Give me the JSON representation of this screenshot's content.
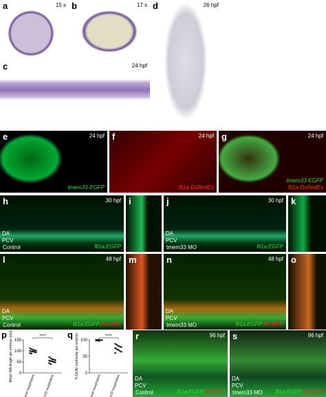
{
  "panels": {
    "a": {
      "label": "a",
      "time": "15 s"
    },
    "b": {
      "label": "b",
      "time": "17 s"
    },
    "c": {
      "label": "c",
      "time": "24 hpf"
    },
    "d": {
      "label": "d",
      "time": "26 hpf"
    },
    "e": {
      "label": "e",
      "time": "24 hpf",
      "reporter": [
        [
          {
            "text": "tmem33-EGFP",
            "color": "#3cdc3c"
          }
        ]
      ]
    },
    "f": {
      "label": "f",
      "time": "24 hpf",
      "reporter": [
        [
          {
            "text": "fli1a-DsRedEx",
            "color": "#ff3030"
          }
        ]
      ]
    },
    "g": {
      "label": "g",
      "time": "24 hpf",
      "reporter": [
        [
          {
            "text": "tmem33-EGFP",
            "color": "#3cdc3c"
          }
        ],
        [
          {
            "text": "fli1a-DsRedEx",
            "color": "#ff3030"
          }
        ]
      ]
    },
    "h": {
      "label": "h",
      "time": "30 hpf",
      "da": "DA",
      "pcv": "PCV",
      "condition": "Control",
      "reporter": [
        [
          {
            "text": "fli1a:EGFP",
            "color": "#3cdc3c"
          }
        ]
      ]
    },
    "i": {
      "label": "i"
    },
    "j": {
      "label": "j",
      "time": "30 hpf",
      "da": "DA",
      "pcv": "PCV",
      "condition": "tmem33 MO",
      "reporter": [
        [
          {
            "text": "fli1a:EGFP",
            "color": "#3cdc3c"
          }
        ]
      ]
    },
    "k": {
      "label": "k"
    },
    "l": {
      "label": "l",
      "time": "48 hpf",
      "da": "DA",
      "pcv": "PCV",
      "condition": "Control",
      "reporter": [
        [
          {
            "text": "fli1a:EGFP;",
            "color": "#3cdc3c"
          },
          {
            "text": "flt1:RFP",
            "color": "#ff3030"
          }
        ]
      ]
    },
    "m": {
      "label": "m"
    },
    "n": {
      "label": "n",
      "time": "48 hpf",
      "da": "DA",
      "pcv": "PCV",
      "condition": "tmem33 MO",
      "reporter": [
        [
          {
            "text": "fli1a:EGFP;",
            "color": "#3cdc3c"
          },
          {
            "text": "flt1:RFP",
            "color": "#ff3030"
          }
        ]
      ]
    },
    "o": {
      "label": "o"
    },
    "r": {
      "label": "r",
      "time": "96 hpf",
      "da": "DA",
      "pcv": "PCV",
      "condition": "Control",
      "reporter": [
        [
          {
            "text": "fli1a:EGFP;",
            "color": "#3cdc3c"
          },
          {
            "text": "flt1:RFP",
            "color": "#ff3030"
          }
        ]
      ]
    },
    "s": {
      "label": "s",
      "time": "96 hpf",
      "da": "DA",
      "pcv": "PCV",
      "condition": "tmem33 MO",
      "reporter": [
        [
          {
            "text": "fli1a:EGFP;",
            "color": "#3cdc3c"
          },
          {
            "text": "flt1:RFP",
            "color": "#ff3030"
          }
        ]
      ]
    }
  },
  "charts": {
    "p": {
      "type": "scatter",
      "label": "p",
      "y_label": "Mean ISA length per embryo (μm)",
      "ylim": [
        0,
        150
      ],
      "yticks": [
        0,
        50,
        100,
        150
      ],
      "significance": "****",
      "series": [
        {
          "name": "Control morpholino",
          "values": [
            112,
            108,
            105,
            103,
            101,
            100,
            98,
            97,
            95,
            93,
            90,
            88
          ]
        },
        {
          "name": "tmem33 morpholino",
          "values": [
            72,
            66,
            62,
            60,
            58,
            56,
            54,
            52,
            50,
            48,
            45,
            40
          ]
        }
      ]
    },
    "q": {
      "type": "scatter",
      "label": "q",
      "y_label": "% DLAV continuity per embryo",
      "ylim": [
        0,
        100
      ],
      "yticks": [
        0,
        50,
        100
      ],
      "significance": "****",
      "series": [
        {
          "name": "Control morpholino",
          "values": [
            100,
            100,
            100,
            99,
            99,
            98,
            98,
            97
          ]
        },
        {
          "name": "tmem33 morpholino",
          "values": [
            88,
            85,
            82,
            80,
            78,
            75,
            72,
            70,
            67,
            64,
            60
          ]
        }
      ]
    }
  }
}
